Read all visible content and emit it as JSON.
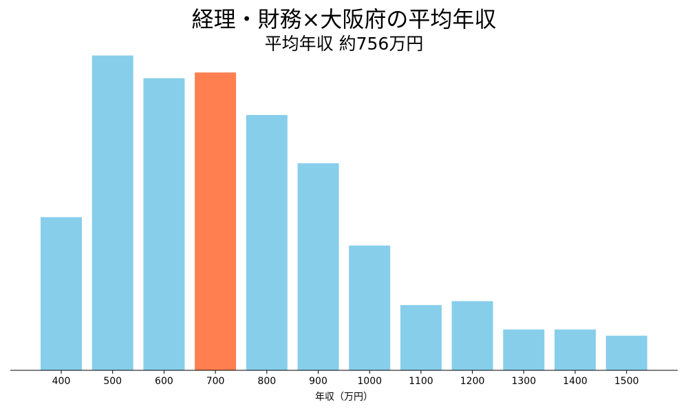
{
  "chart_data": {
    "type": "bar",
    "title": "経理・財務×大阪府の平均年収",
    "subtitle": "平均年収 約756万円",
    "xlabel": "年収（万円）",
    "ylabel": "",
    "categories": [
      "400",
      "500",
      "600",
      "700",
      "800",
      "900",
      "1000",
      "1100",
      "1200",
      "1300",
      "1400",
      "1500"
    ],
    "values": [
      27,
      55.5,
      51.5,
      52.5,
      45,
      36.5,
      22,
      11.5,
      12.2,
      7.2,
      7.2,
      6.1
    ],
    "highlight_category": "700",
    "ylim": [
      0,
      58
    ],
    "grid": false,
    "legend": "none",
    "colors": {
      "bar": "#87CEEB",
      "highlight": "#FF7F50",
      "axis": "#000000",
      "text": "#000000"
    }
  }
}
